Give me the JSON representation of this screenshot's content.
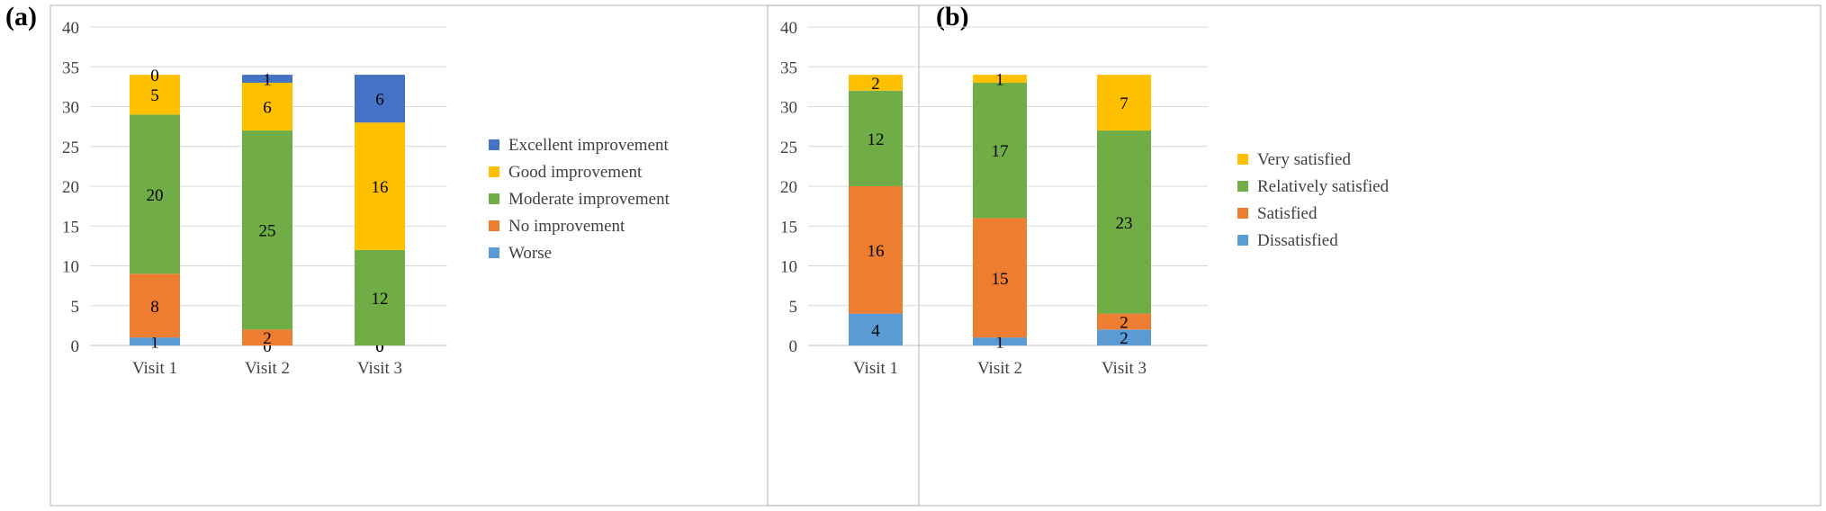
{
  "panels": {
    "a_label": "(a)",
    "b_label": "(b)"
  },
  "chart_data": [
    {
      "type": "bar",
      "stacked": true,
      "panel": "(a)",
      "categories": [
        "Visit 1",
        "Visit 2",
        "Visit 3"
      ],
      "ylim": [
        0,
        40
      ],
      "yticks": [
        0,
        5,
        10,
        15,
        20,
        25,
        30,
        35,
        40
      ],
      "legend_position": "right",
      "series": [
        {
          "name": "Worse",
          "values": [
            1,
            0,
            0
          ],
          "color": "#5B9BD5"
        },
        {
          "name": "No improvement",
          "values": [
            8,
            2,
            0
          ],
          "color": "#ED7D31"
        },
        {
          "name": "Moderate improvement",
          "values": [
            20,
            25,
            12
          ],
          "color": "#70AD47"
        },
        {
          "name": "Good improvement",
          "values": [
            5,
            6,
            16
          ],
          "color": "#FFC000"
        },
        {
          "name": "Excellent improvement",
          "values": [
            0,
            1,
            6
          ],
          "color": "#4472C4"
        }
      ]
    },
    {
      "type": "bar",
      "stacked": true,
      "panel": "(b)",
      "categories": [
        "Visit 1",
        "Visit 2",
        "Visit 3"
      ],
      "ylim": [
        0,
        40
      ],
      "yticks": [
        0,
        5,
        10,
        15,
        20,
        25,
        30,
        35,
        40
      ],
      "legend_position": "right",
      "series": [
        {
          "name": "Dissatisfied",
          "values": [
            4,
            1,
            2
          ],
          "color": "#5B9BD5"
        },
        {
          "name": "Satisfied",
          "values": [
            16,
            15,
            2
          ],
          "color": "#ED7D31"
        },
        {
          "name": "Relatively satisfied",
          "values": [
            12,
            17,
            23
          ],
          "color": "#70AD47"
        },
        {
          "name": "Very satisfied",
          "values": [
            2,
            1,
            7
          ],
          "color": "#FFC000"
        }
      ]
    }
  ]
}
